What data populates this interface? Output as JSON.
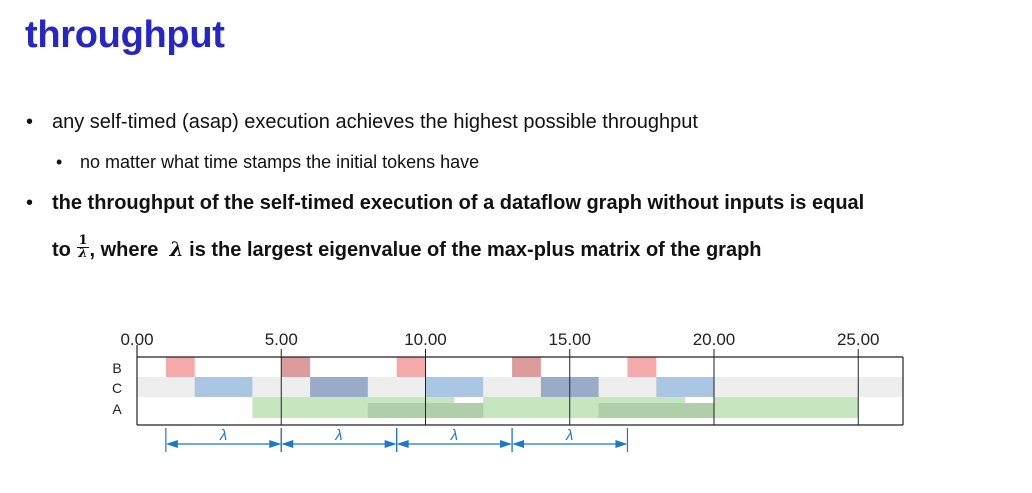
{
  "slide": {
    "title": "throughput",
    "bullet1": "any self-timed (asap) execution achieves the highest possible throughput",
    "bullet1_sub": "no matter what time stamps the initial tokens have",
    "bullet2_line1": "the throughput of the self-timed execution of a dataflow graph without inputs is equal",
    "bullet2_to": "to",
    "bullet2_frac_num": "1",
    "bullet2_frac_den": "λ",
    "bullet2_comma": ",",
    "bullet2_where": "where",
    "bullet2_lambda": "λ",
    "bullet2_rest": "is the largest eigenvalue of the max-plus matrix of the graph"
  },
  "timeline": {
    "axis_labels": [
      "0.00",
      "5.00",
      "10.00",
      "15.00",
      "20.00",
      "25.00"
    ],
    "row_labels": [
      "B",
      "C",
      "A"
    ],
    "period_label": "λ",
    "colors": {
      "B_light": "#f4aaaa",
      "B_dark": "#dc9c9c",
      "C_light": "#aac6e2",
      "C_dark": "#9aabc8",
      "A_light": "#c6e6c0",
      "A_dark": "#b0ceaa",
      "row_band": "#eeeeee",
      "arrow": "#1e78c8"
    },
    "firings": {
      "B": [
        [
          1.0,
          2.0
        ],
        [
          5.0,
          6.0
        ],
        [
          9.0,
          10.0
        ],
        [
          13.0,
          14.0
        ],
        [
          17.0,
          18.0
        ]
      ],
      "C": [
        [
          2.0,
          4.0
        ],
        [
          6.0,
          8.0
        ],
        [
          10.0,
          12.0
        ],
        [
          14.0,
          16.0
        ],
        [
          18.0,
          20.0
        ]
      ],
      "A": [
        [
          4.0,
          11.0
        ],
        [
          8.0,
          15.0
        ],
        [
          12.0,
          19.0
        ],
        [
          16.0,
          23.0
        ],
        [
          20.0,
          25.0
        ]
      ]
    },
    "periods": [
      [
        1.0,
        5.0
      ],
      [
        5.0,
        9.0
      ],
      [
        9.0,
        13.0
      ],
      [
        13.0,
        17.0
      ]
    ]
  }
}
